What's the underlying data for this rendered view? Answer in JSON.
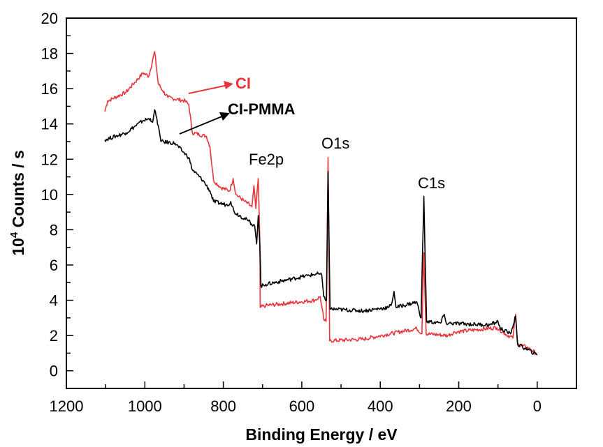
{
  "chart_data": {
    "type": "line",
    "title": "",
    "xlabel": "Binding Energy / eV",
    "ylabel_prefix": "10",
    "ylabel_superscript": "4",
    "ylabel_suffix": " Counts / s",
    "xlim": [
      1200,
      -100
    ],
    "ylim": [
      -1,
      20
    ],
    "x_reversed": true,
    "grid": false,
    "x_ticks": [
      1200,
      1000,
      800,
      600,
      400,
      200,
      0
    ],
    "x_tick_labels": [
      "1200",
      "1000",
      "800",
      "600",
      "400",
      "200",
      "0"
    ],
    "y_ticks": [
      0,
      2,
      4,
      6,
      8,
      10,
      12,
      14,
      16,
      18,
      20
    ],
    "y_tick_labels": [
      "0",
      "2",
      "4",
      "6",
      "8",
      "10",
      "12",
      "14",
      "16",
      "18",
      "20"
    ],
    "peak_labels": [
      "Fe2p",
      "O1s",
      "C1s"
    ],
    "series": [
      {
        "name": "CI",
        "color": "#e8363b",
        "x": [
          1102,
          1095,
          1048,
          1004,
          990,
          975,
          966,
          955,
          941,
          897,
          888,
          879,
          843,
          834,
          825,
          807,
          784,
          775,
          768,
          745,
          727,
          722,
          717,
          711,
          707,
          706,
          692,
          567,
          553,
          544,
          538,
          533,
          529,
          442,
          307,
          294,
          289,
          283,
          228,
          210,
          103,
          82,
          62,
          55,
          50,
          23,
          0
        ],
        "y": [
          14.7,
          15.3,
          15.8,
          16.9,
          16.7,
          18.1,
          16.3,
          15.9,
          15.5,
          15.3,
          15.1,
          13.5,
          13.3,
          12.7,
          10.8,
          10.4,
          10.2,
          10.9,
          10.0,
          9.6,
          9.3,
          10.5,
          9.2,
          10.9,
          7.6,
          3.6,
          3.7,
          4.0,
          4.2,
          2.9,
          2.8,
          12.1,
          1.7,
          1.8,
          2.4,
          2.1,
          6.7,
          2.1,
          2.0,
          2.2,
          2.45,
          2.1,
          1.85,
          3.2,
          1.5,
          1.3,
          0.95
        ]
      },
      {
        "name": "CI-PMMA",
        "color": "#000000",
        "x": [
          1102,
          1048,
          1004,
          986,
          980,
          975,
          964,
          959,
          923,
          902,
          888,
          879,
          852,
          834,
          825,
          790,
          781,
          772,
          736,
          720,
          715,
          711,
          707,
          704,
          692,
          585,
          558,
          549,
          544,
          537,
          533,
          528,
          442,
          378,
          371,
          365,
          360,
          307,
          296,
          289,
          282,
          246,
          237,
          232,
          121,
          100,
          94,
          68,
          55,
          50,
          0
        ],
        "y": [
          13.1,
          13.5,
          14.2,
          14.3,
          14.1,
          14.8,
          13.7,
          13.0,
          12.9,
          12.4,
          12.1,
          11.4,
          10.8,
          10.2,
          9.6,
          9.4,
          9.6,
          9.0,
          8.5,
          8.2,
          7.2,
          8.8,
          7.2,
          4.8,
          4.9,
          5.4,
          5.5,
          5.4,
          4.2,
          4.0,
          11.3,
          3.5,
          3.4,
          3.6,
          3.8,
          4.5,
          3.6,
          3.9,
          3.0,
          9.9,
          2.8,
          2.7,
          3.2,
          2.7,
          2.6,
          2.8,
          2.4,
          2.1,
          3.1,
          1.5,
          0.9
        ]
      }
    ],
    "annotations": [
      {
        "text": "CI",
        "color": "#e8363b"
      },
      {
        "text": "CI-PMMA",
        "color": "#000000"
      }
    ]
  }
}
